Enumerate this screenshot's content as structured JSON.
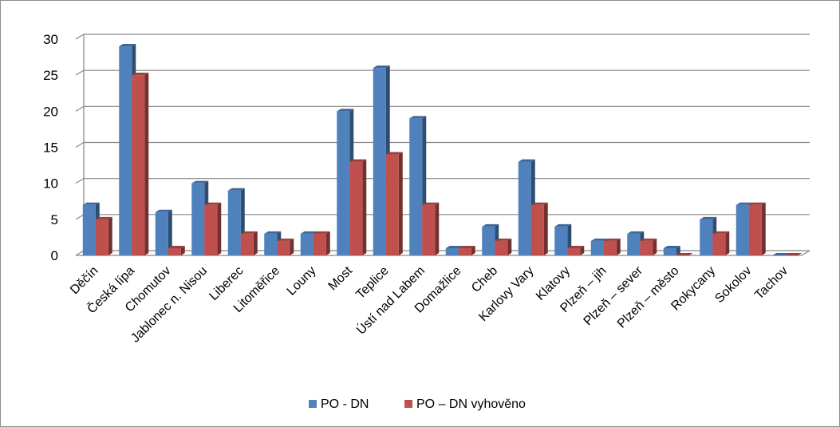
{
  "chart_data": {
    "type": "bar",
    "style": "3d-clustered-column",
    "title": "",
    "xlabel": "",
    "ylabel": "",
    "ylim": [
      0,
      30
    ],
    "yticks": [
      "0",
      "5",
      "10",
      "15",
      "20",
      "25",
      "30"
    ],
    "grid": true,
    "legend_position": "bottom",
    "categories": [
      "Děčín",
      "Česká lípa",
      "Chomutov",
      "Jablonec n. Nisou",
      "Liberec",
      "Litoměřice",
      "Louny",
      "Most",
      "Teplice",
      "Ústí nad Labem",
      "Domažlice",
      "Cheb",
      "Karlovy Vary",
      "Klatovy",
      "Plzeň – jih",
      "Plzeň – sever",
      "Plzeň – město",
      "Rokycany",
      "Sokolov",
      "Tachov"
    ],
    "series": [
      {
        "name": "PO - DN",
        "color": "#4f81bd",
        "values": [
          7,
          29,
          6,
          10,
          9,
          3,
          3,
          20,
          26,
          19,
          1,
          4,
          13,
          4,
          2,
          3,
          1,
          5,
          7,
          0
        ]
      },
      {
        "name": "PO – DN vyhověno",
        "color": "#c0504d",
        "values": [
          5,
          25,
          1,
          7,
          3,
          2,
          3,
          13,
          14,
          7,
          1,
          2,
          7,
          1,
          2,
          2,
          0,
          3,
          7,
          0
        ]
      }
    ]
  }
}
